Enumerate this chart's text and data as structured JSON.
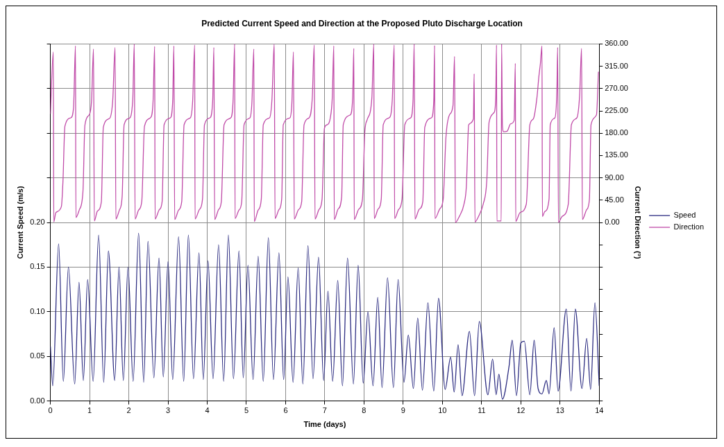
{
  "chart_data": {
    "type": "line",
    "title": "Predicted Current Speed and Direction at the Proposed Pluto Discharge Location",
    "xlabel": "Time (days)",
    "ylabel": "Current Speed (m/s)",
    "y2label": "Current Direction (°)",
    "xlim": [
      0,
      14
    ],
    "xticks": [
      0,
      1,
      2,
      3,
      4,
      5,
      6,
      7,
      8,
      9,
      10,
      11,
      12,
      13,
      14
    ],
    "ylim": [
      0,
      0.4
    ],
    "yticks": [
      {
        "value": 0,
        "label": "0.00"
      },
      {
        "value": 0.05,
        "label": "0.05"
      },
      {
        "value": 0.1,
        "label": "0.10"
      },
      {
        "value": 0.15,
        "label": "0.15"
      },
      {
        "value": 0.2,
        "label": "0.20"
      },
      {
        "value": 0.25,
        "label": null
      },
      {
        "value": 0.3,
        "label": null
      },
      {
        "value": 0.35,
        "label": null
      },
      {
        "value": 0.4,
        "label": null
      }
    ],
    "y2lim": [
      -360,
      360
    ],
    "y2ticks": [
      {
        "value": -360,
        "label": null
      },
      {
        "value": -315,
        "label": null
      },
      {
        "value": -270,
        "label": null
      },
      {
        "value": -225,
        "label": null
      },
      {
        "value": -180,
        "label": null
      },
      {
        "value": -135,
        "label": null
      },
      {
        "value": -90,
        "label": null
      },
      {
        "value": -45,
        "label": null
      },
      {
        "value": 0,
        "label": "0.00"
      },
      {
        "value": 45,
        "label": "45.00"
      },
      {
        "value": 90,
        "label": "90.00"
      },
      {
        "value": 135,
        "label": "135.00"
      },
      {
        "value": 180,
        "label": "180.00"
      },
      {
        "value": 225,
        "label": "225.00"
      },
      {
        "value": 270,
        "label": "270.00"
      },
      {
        "value": 315,
        "label": "315.00"
      },
      {
        "value": 360,
        "label": "360.00"
      }
    ],
    "grid": true,
    "legend": "right",
    "marker": "none",
    "line_style": "solid",
    "series": [
      {
        "name": "Speed",
        "color": "#2b2b80",
        "x": [
          0,
          0.06,
          0.21,
          0.33,
          0.46,
          0.62,
          0.73,
          0.84,
          0.95,
          1.09,
          1.23,
          1.36,
          1.48,
          1.64,
          1.75,
          1.86,
          1.98,
          2.11,
          2.25,
          2.38,
          2.49,
          2.64,
          2.77,
          2.88,
          3.0,
          3.12,
          3.27,
          3.4,
          3.52,
          3.65,
          3.79,
          3.9,
          4.02,
          4.15,
          4.29,
          4.42,
          4.54,
          4.67,
          4.81,
          4.92,
          5.04,
          5.17,
          5.3,
          5.43,
          5.56,
          5.69,
          5.83,
          5.95,
          6.06,
          6.19,
          6.32,
          6.44,
          6.57,
          6.7,
          6.84,
          6.97,
          7.08,
          7.2,
          7.33,
          7.45,
          7.58,
          7.73,
          7.85,
          7.98,
          8.1,
          8.23,
          8.35,
          8.46,
          8.6,
          8.75,
          8.87,
          9.02,
          9.13,
          9.26,
          9.37,
          9.49,
          9.63,
          9.78,
          9.9,
          10.07,
          10.21,
          10.3,
          10.4,
          10.5,
          10.69,
          10.82,
          10.94,
          11.16,
          11.28,
          11.37,
          11.44,
          11.53,
          11.7,
          11.78,
          11.89,
          12.0,
          12.09,
          12.23,
          12.34,
          12.44,
          12.54,
          12.65,
          12.72,
          12.85,
          12.95,
          13.16,
          13.28,
          13.39,
          13.56,
          13.68,
          13.78,
          13.89,
          14.0
        ],
        "values": [
          0.061,
          0.017,
          0.176,
          0.022,
          0.15,
          0.019,
          0.133,
          0.023,
          0.136,
          0.022,
          0.186,
          0.021,
          0.168,
          0.023,
          0.15,
          0.023,
          0.15,
          0.022,
          0.188,
          0.021,
          0.179,
          0.026,
          0.16,
          0.027,
          0.156,
          0.024,
          0.184,
          0.022,
          0.186,
          0.025,
          0.166,
          0.024,
          0.157,
          0.025,
          0.175,
          0.022,
          0.186,
          0.025,
          0.168,
          0.026,
          0.152,
          0.024,
          0.162,
          0.022,
          0.183,
          0.024,
          0.166,
          0.024,
          0.139,
          0.021,
          0.149,
          0.019,
          0.174,
          0.025,
          0.161,
          0.023,
          0.123,
          0.022,
          0.135,
          0.017,
          0.16,
          0.019,
          0.152,
          0.02,
          0.1,
          0.017,
          0.116,
          0.015,
          0.138,
          0.015,
          0.136,
          0.021,
          0.074,
          0.014,
          0.093,
          0.012,
          0.11,
          0.011,
          0.115,
          0.013,
          0.049,
          0.01,
          0.063,
          0.006,
          0.078,
          0.006,
          0.089,
          0.007,
          0.047,
          0.007,
          0.03,
          0.002,
          0.039,
          0.068,
          0.006,
          0.065,
          0.067,
          0.007,
          0.068,
          0.014,
          0.008,
          0.023,
          0.008,
          0.082,
          0.011,
          0.103,
          0.011,
          0.103,
          0.014,
          0.07,
          0.013,
          0.11,
          0.017
        ]
      },
      {
        "name": "Direction",
        "color": "#c04aa8",
        "axis": "y2",
        "x": [
          0,
          0.074,
          0.086,
          0.14,
          0.28,
          0.32,
          0.37,
          0.52,
          0.59,
          0.64,
          0.65,
          0.74,
          0.83,
          0.88,
          0.99,
          1.05,
          1.1,
          1.12,
          1.2,
          1.3,
          1.35,
          1.51,
          1.59,
          1.65,
          1.67,
          1.76,
          1.83,
          1.88,
          2.01,
          2.1,
          2.14,
          2.16,
          2.25,
          2.33,
          2.4,
          2.56,
          2.62,
          2.66,
          2.67,
          2.78,
          2.85,
          2.9,
          3.06,
          3.12,
          3.15,
          3.17,
          3.27,
          3.35,
          3.41,
          3.57,
          3.63,
          3.68,
          3.69,
          3.8,
          3.88,
          3.93,
          4.07,
          4.14,
          4.17,
          4.19,
          4.29,
          4.36,
          4.43,
          4.6,
          4.66,
          4.7,
          4.71,
          4.81,
          4.88,
          4.94,
          5.09,
          5.14,
          5.19,
          5.2,
          5.3,
          5.38,
          5.43,
          5.59,
          5.65,
          5.71,
          5.73,
          5.83,
          5.9,
          5.94,
          6.11,
          6.16,
          6.2,
          6.22,
          6.33,
          6.41,
          6.47,
          6.6,
          6.68,
          6.73,
          6.75,
          6.85,
          6.93,
          6.99,
          7.06,
          7.14,
          7.19,
          7.23,
          7.24,
          7.34,
          7.43,
          7.47,
          7.65,
          7.71,
          7.74,
          7.75,
          7.86,
          7.96,
          8.02,
          8.08,
          8.2,
          8.25,
          8.26,
          8.36,
          8.44,
          8.49,
          8.64,
          8.72,
          8.77,
          8.78,
          8.88,
          8.97,
          9.04,
          9.19,
          9.25,
          9.28,
          9.3,
          9.41,
          9.5,
          9.55,
          9.72,
          9.78,
          9.8,
          9.81,
          9.93,
          10.02,
          10.09,
          10.18,
          10.27,
          10.31,
          10.33,
          10.43,
          10.55,
          10.61,
          10.67,
          10.79,
          10.81,
          10.83,
          10.92,
          11.04,
          11.13,
          11.19,
          11.32,
          11.36,
          11.38,
          11.39,
          11.5,
          11.51,
          11.53,
          11.56,
          11.65,
          11.74,
          11.83,
          11.86,
          11.87,
          11.98,
          12.14,
          12.23,
          12.32,
          12.41,
          12.46,
          12.5,
          12.54,
          12.55,
          12.61,
          12.72,
          12.75,
          12.87,
          12.92,
          12.94,
          12.96,
          13.05,
          13.21,
          13.29,
          13.43,
          13.5,
          13.55,
          13.57,
          13.68,
          13.75,
          13.79,
          13.93,
          13.98
        ],
        "values": [
          219,
          344,
          1,
          20,
          32,
          82,
          194,
          211,
          231,
          356,
          10,
          26,
          62,
          196,
          217,
          246,
          350,
          3,
          23,
          42,
          192,
          210,
          246,
          353,
          7,
          25,
          52,
          197,
          210,
          246,
          360,
          7,
          25,
          42,
          194,
          212,
          246,
          355,
          7,
          26,
          42,
          197,
          211,
          246,
          356,
          6,
          25,
          42,
          197,
          211,
          246,
          358,
          7,
          26,
          47,
          197,
          211,
          246,
          353,
          6,
          26,
          42,
          197,
          211,
          246,
          360,
          8,
          25,
          42,
          197,
          211,
          241,
          350,
          2,
          25,
          47,
          197,
          211,
          246,
          360,
          8,
          26,
          47,
          197,
          211,
          241,
          344,
          7,
          26,
          42,
          197,
          211,
          251,
          358,
          7,
          26,
          47,
          190,
          197,
          211,
          251,
          356,
          6,
          27,
          52,
          197,
          217,
          251,
          351,
          6,
          26,
          47,
          182,
          207,
          251,
          360,
          8,
          27,
          47,
          197,
          211,
          246,
          358,
          8,
          26,
          47,
          197,
          211,
          246,
          360,
          7,
          27,
          42,
          192,
          211,
          246,
          357,
          8,
          27,
          47,
          172,
          217,
          236,
          335,
          0,
          12,
          37,
          72,
          197,
          209,
          300,
          1,
          12,
          37,
          82,
          202,
          222,
          251,
          358,
          3,
          3,
          360,
          197,
          183,
          184,
          199,
          206,
          321,
          2,
          20,
          37,
          197,
          209,
          251,
          294,
          321,
          356,
          12,
          22,
          47,
          197,
          211,
          266,
          353,
          0,
          12,
          37,
          197,
          211,
          256,
          351,
          6,
          26,
          47,
          197,
          217,
          304
        ]
      }
    ]
  }
}
